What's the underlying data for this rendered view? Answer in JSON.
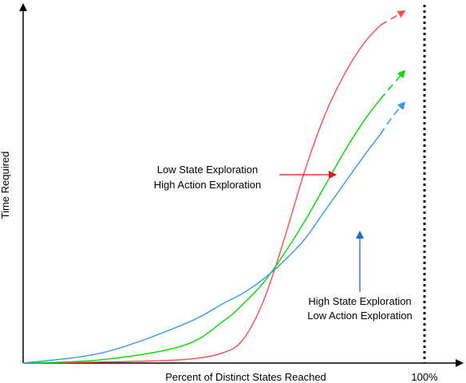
{
  "chart_data": {
    "type": "line",
    "title": "",
    "xlabel": "Percent of Distinct States Reached",
    "ylabel": "Time Required",
    "x_tick_label": "100%",
    "xlim": [
      0,
      100
    ],
    "ylim": [
      0,
      100
    ],
    "grid": false,
    "legend": "none",
    "series": [
      {
        "color": "#ff4b4b",
        "style_after_x": 89,
        "x": [
          0,
          20,
          40,
          50,
          55,
          60,
          65,
          70,
          75,
          80,
          85,
          89,
          92,
          95
        ],
        "y": [
          0,
          0.3,
          1,
          3,
          7,
          18,
          35,
          54,
          70,
          82,
          91,
          96,
          98,
          100
        ]
      },
      {
        "color": "#00dd00",
        "style_after_x": 89,
        "x": [
          0,
          20,
          40,
          50,
          55,
          60,
          65,
          70,
          75,
          80,
          85,
          89,
          92,
          95
        ],
        "y": [
          0,
          1,
          5,
          12,
          17,
          23,
          31,
          40,
          50,
          60,
          69,
          75,
          79,
          83
        ]
      },
      {
        "color": "#3399ee",
        "style_after_x": 89,
        "x": [
          0,
          20,
          40,
          50,
          55,
          60,
          65,
          70,
          75,
          80,
          85,
          89,
          92,
          95
        ],
        "y": [
          0,
          3,
          11,
          17,
          20,
          24,
          29,
          35,
          43,
          51,
          59,
          65,
          70,
          74
        ]
      }
    ],
    "reference_line": {
      "x": 100,
      "style": "dotted",
      "color": "#000000"
    },
    "annotations": [
      {
        "lines": [
          "Low State Exploration",
          "High Action Exploration"
        ],
        "arrow_color": "#e8121c"
      },
      {
        "lines": [
          "High State Exploration",
          "Low Action Exploration"
        ],
        "arrow_color": "#1a6ecf"
      }
    ]
  }
}
